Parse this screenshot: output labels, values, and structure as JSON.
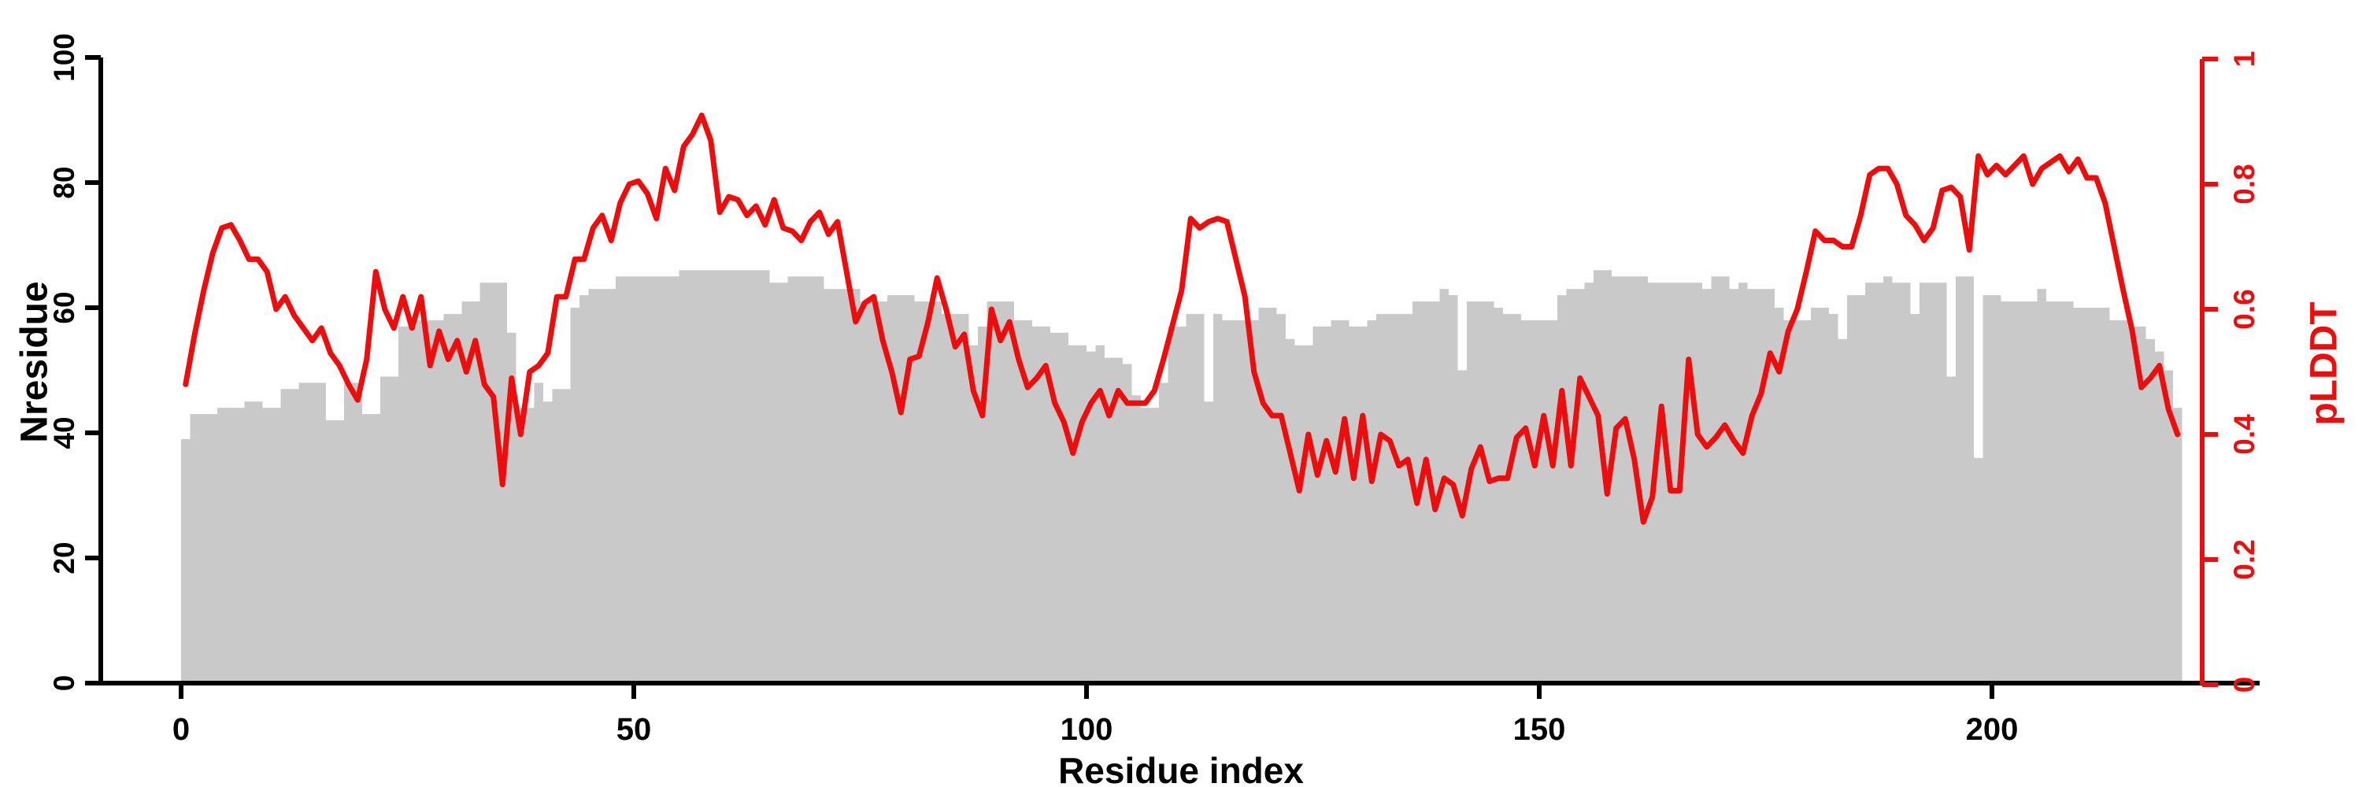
{
  "colors": {
    "bar": "#c9c9c9",
    "line": "#ee0d0d",
    "axis_left": "#000000",
    "axis_right": "#ee0d0d"
  },
  "chart_data": {
    "type": "composite",
    "title": "",
    "x": {
      "label": "Residue index",
      "ticks": [
        0,
        50,
        100,
        150,
        200
      ],
      "range": [
        0,
        221
      ]
    },
    "y_left": {
      "label": "Nresidue",
      "ticks": [
        0,
        20,
        40,
        60,
        80,
        100
      ],
      "range": [
        0,
        100
      ],
      "grid": false
    },
    "y_right": {
      "label": "pLDDT",
      "ticks": [
        0,
        0.2,
        0.4,
        0.6,
        0.8,
        1
      ],
      "tick_labels": [
        "0",
        "0.2",
        "0.4",
        "0.6",
        "0.8",
        "1"
      ],
      "range": [
        0,
        1
      ]
    },
    "legend": "none",
    "series": [
      {
        "name": "Nresidue",
        "type": "bar",
        "axis": "left",
        "values": [
          39,
          43,
          43,
          43,
          44,
          44,
          44,
          45,
          45,
          44,
          44,
          47,
          47,
          48,
          48,
          48,
          42,
          42,
          48,
          48,
          43,
          43,
          49,
          49,
          57,
          57,
          58,
          58,
          58,
          59,
          59,
          61,
          61,
          64,
          64,
          64,
          56,
          44,
          44,
          48,
          45,
          47,
          47,
          60,
          62,
          63,
          63,
          63,
          65,
          65,
          65,
          65,
          65,
          65,
          65,
          66,
          66,
          66,
          66,
          66,
          66,
          66,
          66,
          66,
          66,
          64,
          64,
          65,
          65,
          65,
          65,
          63,
          63,
          63,
          63,
          61,
          61,
          61,
          62,
          62,
          62,
          61,
          61,
          61,
          59,
          59,
          59,
          54,
          57,
          61,
          61,
          61,
          58,
          58,
          57,
          57,
          56,
          56,
          54,
          54,
          53,
          54,
          52,
          52,
          51,
          46,
          44,
          44,
          48,
          57,
          57,
          59,
          59,
          45,
          59,
          58,
          58,
          58,
          58,
          60,
          60,
          59,
          55,
          54,
          54,
          57,
          57,
          58,
          58,
          57,
          57,
          58,
          59,
          59,
          59,
          59,
          61,
          61,
          61,
          63,
          62,
          50,
          61,
          61,
          61,
          60,
          59,
          59,
          58,
          58,
          58,
          58,
          62,
          63,
          63,
          64,
          66,
          66,
          65,
          65,
          65,
          65,
          64,
          64,
          64,
          64,
          64,
          64,
          63,
          65,
          65,
          63,
          64,
          63,
          63,
          63,
          60,
          58,
          58,
          58,
          60,
          60,
          59,
          55,
          62,
          62,
          64,
          64,
          65,
          64,
          64,
          59,
          64,
          64,
          64,
          49,
          65,
          65,
          36,
          62,
          62,
          61,
          61,
          61,
          61,
          63,
          61,
          61,
          61,
          60,
          60,
          60,
          60,
          58,
          58,
          57,
          57,
          55,
          53,
          50,
          44
        ]
      },
      {
        "name": "pLDDT",
        "type": "line",
        "axis": "right",
        "values": [
          0.48,
          0.56,
          0.63,
          0.69,
          0.73,
          0.735,
          0.71,
          0.68,
          0.68,
          0.66,
          0.6,
          0.62,
          0.59,
          0.57,
          0.55,
          0.57,
          0.53,
          0.51,
          0.48,
          0.455,
          0.52,
          0.66,
          0.6,
          0.57,
          0.62,
          0.57,
          0.62,
          0.51,
          0.565,
          0.52,
          0.55,
          0.5,
          0.55,
          0.48,
          0.46,
          0.32,
          0.49,
          0.4,
          0.5,
          0.51,
          0.53,
          0.62,
          0.62,
          0.68,
          0.68,
          0.73,
          0.75,
          0.71,
          0.77,
          0.8,
          0.805,
          0.785,
          0.745,
          0.825,
          0.79,
          0.86,
          0.88,
          0.91,
          0.87,
          0.755,
          0.78,
          0.775,
          0.75,
          0.765,
          0.735,
          0.775,
          0.73,
          0.725,
          0.71,
          0.74,
          0.755,
          0.72,
          0.74,
          0.66,
          0.58,
          0.61,
          0.62,
          0.55,
          0.5,
          0.435,
          0.52,
          0.525,
          0.58,
          0.65,
          0.6,
          0.54,
          0.56,
          0.47,
          0.43,
          0.6,
          0.55,
          0.58,
          0.52,
          0.475,
          0.49,
          0.51,
          0.45,
          0.42,
          0.37,
          0.42,
          0.45,
          0.47,
          0.43,
          0.47,
          0.45,
          0.45,
          0.45,
          0.47,
          0.52,
          0.575,
          0.63,
          0.745,
          0.73,
          0.74,
          0.745,
          0.74,
          0.68,
          0.62,
          0.5,
          0.45,
          0.43,
          0.43,
          0.37,
          0.31,
          0.4,
          0.335,
          0.39,
          0.34,
          0.425,
          0.33,
          0.43,
          0.325,
          0.4,
          0.39,
          0.35,
          0.36,
          0.29,
          0.36,
          0.28,
          0.33,
          0.32,
          0.27,
          0.345,
          0.38,
          0.325,
          0.33,
          0.33,
          0.395,
          0.41,
          0.35,
          0.43,
          0.35,
          0.47,
          0.35,
          0.49,
          0.46,
          0.43,
          0.305,
          0.41,
          0.425,
          0.36,
          0.26,
          0.3,
          0.445,
          0.31,
          0.31,
          0.52,
          0.4,
          0.38,
          0.395,
          0.415,
          0.39,
          0.37,
          0.43,
          0.465,
          0.53,
          0.5,
          0.565,
          0.6,
          0.66,
          0.725,
          0.71,
          0.71,
          0.7,
          0.7,
          0.75,
          0.815,
          0.825,
          0.825,
          0.8,
          0.75,
          0.735,
          0.71,
          0.73,
          0.79,
          0.795,
          0.78,
          0.695,
          0.845,
          0.815,
          0.83,
          0.815,
          0.83,
          0.845,
          0.8,
          0.825,
          0.835,
          0.845,
          0.82,
          0.84,
          0.81,
          0.81,
          0.77,
          0.7,
          0.63,
          0.565,
          0.475,
          0.49,
          0.51,
          0.44,
          0.4
        ]
      }
    ]
  },
  "labels": {
    "y_left_title": "Nresidue",
    "y_right_title": "pLDDT",
    "x_title": "Residue index"
  }
}
